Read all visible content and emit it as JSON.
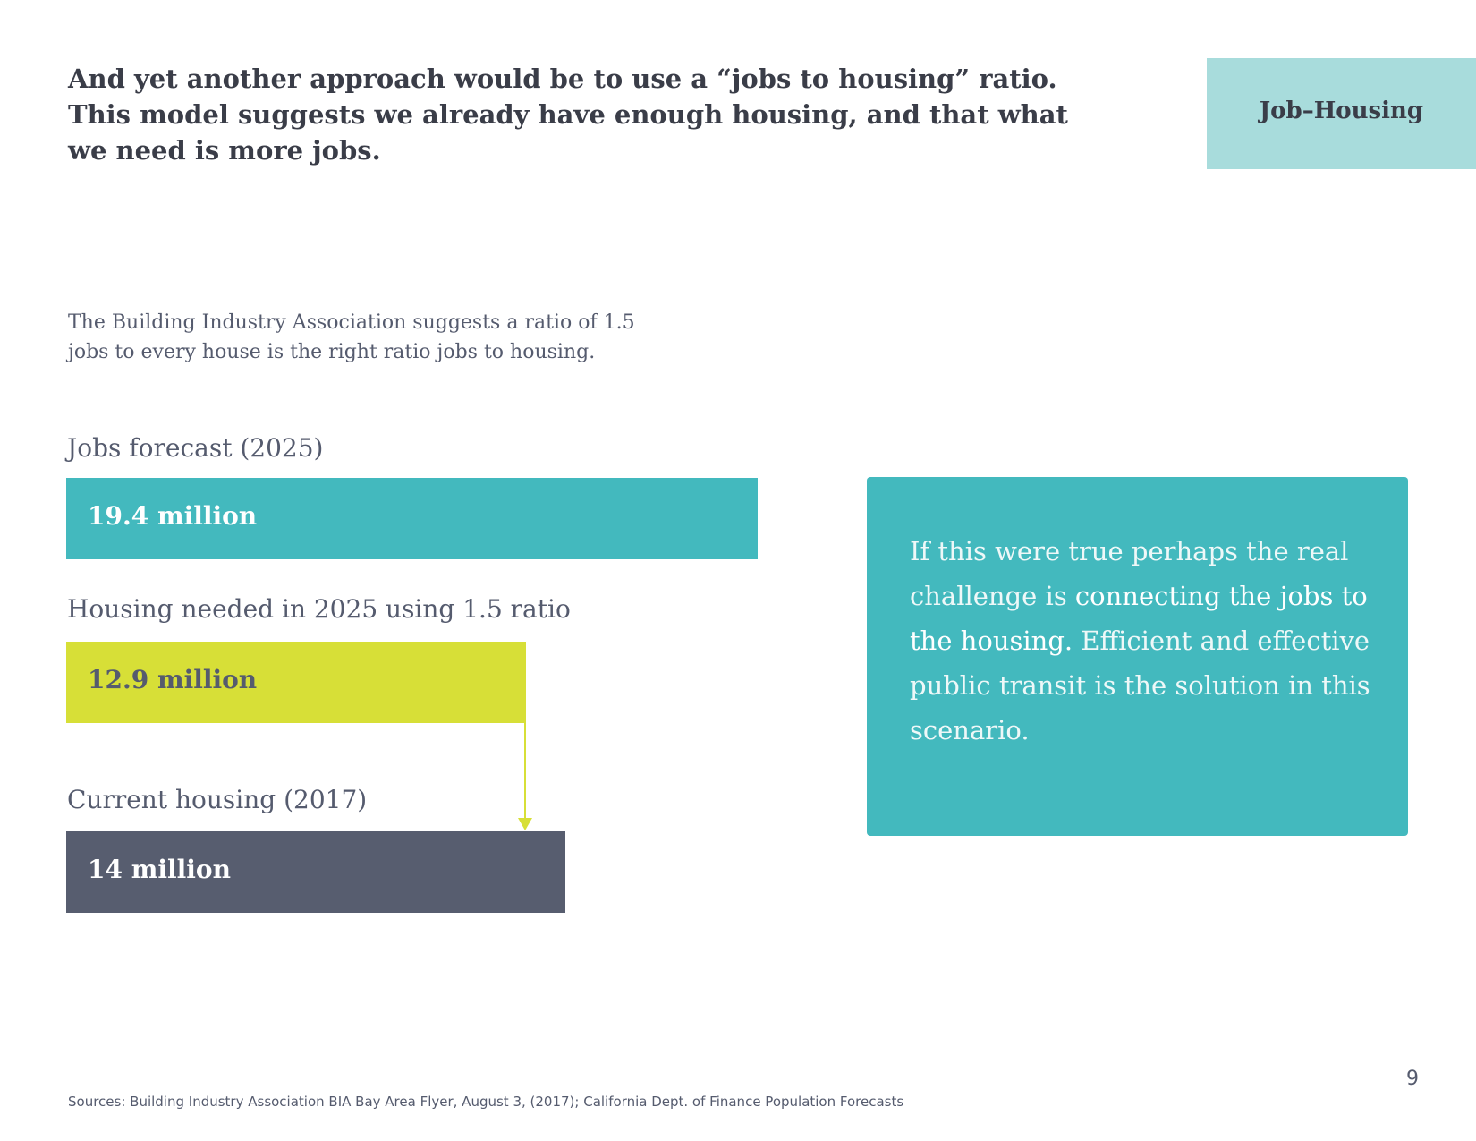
{
  "heading": {
    "lines": [
      "And yet another approach would be to use a “jobs to housing” ratio.",
      "This model suggests we already have enough housing, and that what",
      "we need is more jobs."
    ]
  },
  "tag": "Job–Housing",
  "intro": {
    "lines": [
      "The Building Industry Association suggests a ratio of 1.5",
      "jobs to every house is the right ratio jobs to housing."
    ]
  },
  "bars": [
    {
      "label": "Jobs forecast (2025)",
      "value": 19.4,
      "value_label": "19.4 million",
      "color": "#43b9be",
      "text_color": "#ffffff"
    },
    {
      "label": "Housing needed in 2025 using 1.5 ratio",
      "value": 12.9,
      "value_label": "12.9 million",
      "color": "#d7df37",
      "text_color": "#555b6e"
    },
    {
      "label": "Current housing (2017)",
      "value": 14,
      "value_label": "14 million",
      "color": "#575d6f",
      "text_color": "#ffffff"
    }
  ],
  "callout": {
    "segments": [
      {
        "text": "If this were true perhaps the real challenge is  ",
        "bold": false
      },
      {
        "text": "connecting the jobs to the housing.",
        "bold": true
      },
      {
        "text": " Efficient and effective public transit is the solution in this scenario.",
        "bold": false
      }
    ]
  },
  "page_number": "9",
  "sources": "Sources: Building Industry Association BIA Bay Area Flyer, August 3, (2017); California Dept. of Finance Population Forecasts"
}
